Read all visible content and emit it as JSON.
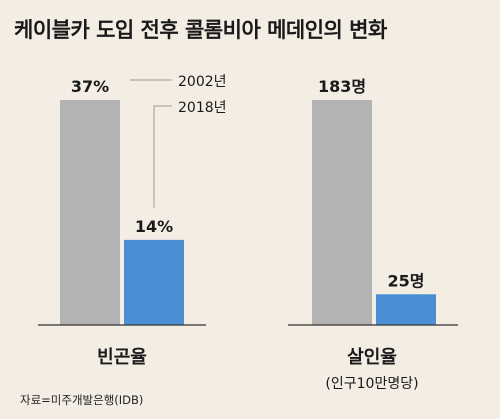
{
  "title": "케이블카 도입 전후 콜롬비아 메데인의 변화",
  "source": "자료=미주개발은행(IDB)",
  "colors": {
    "2002": "#b3b3b3",
    "2018": "#4a8fd3",
    "axis": "#333333",
    "leader": "#9a9a9a"
  },
  "legend": {
    "series_2002": "2002년",
    "series_2018": "2018년"
  },
  "chart_data": [
    {
      "type": "bar",
      "title": "빈곤율",
      "subtitle": "",
      "series": [
        {
          "name": "2002년",
          "values": [
            37
          ],
          "label": "37%"
        },
        {
          "name": "2018년",
          "values": [
            14
          ],
          "label": "14%"
        }
      ],
      "ylim": [
        0,
        37
      ]
    },
    {
      "type": "bar",
      "title": "살인율",
      "subtitle": "(인구10만명당)",
      "series": [
        {
          "name": "2002년",
          "values": [
            183
          ],
          "label": "183명"
        },
        {
          "name": "2018년",
          "values": [
            25
          ],
          "label": "25명"
        }
      ],
      "ylim": [
        0,
        183
      ]
    }
  ]
}
